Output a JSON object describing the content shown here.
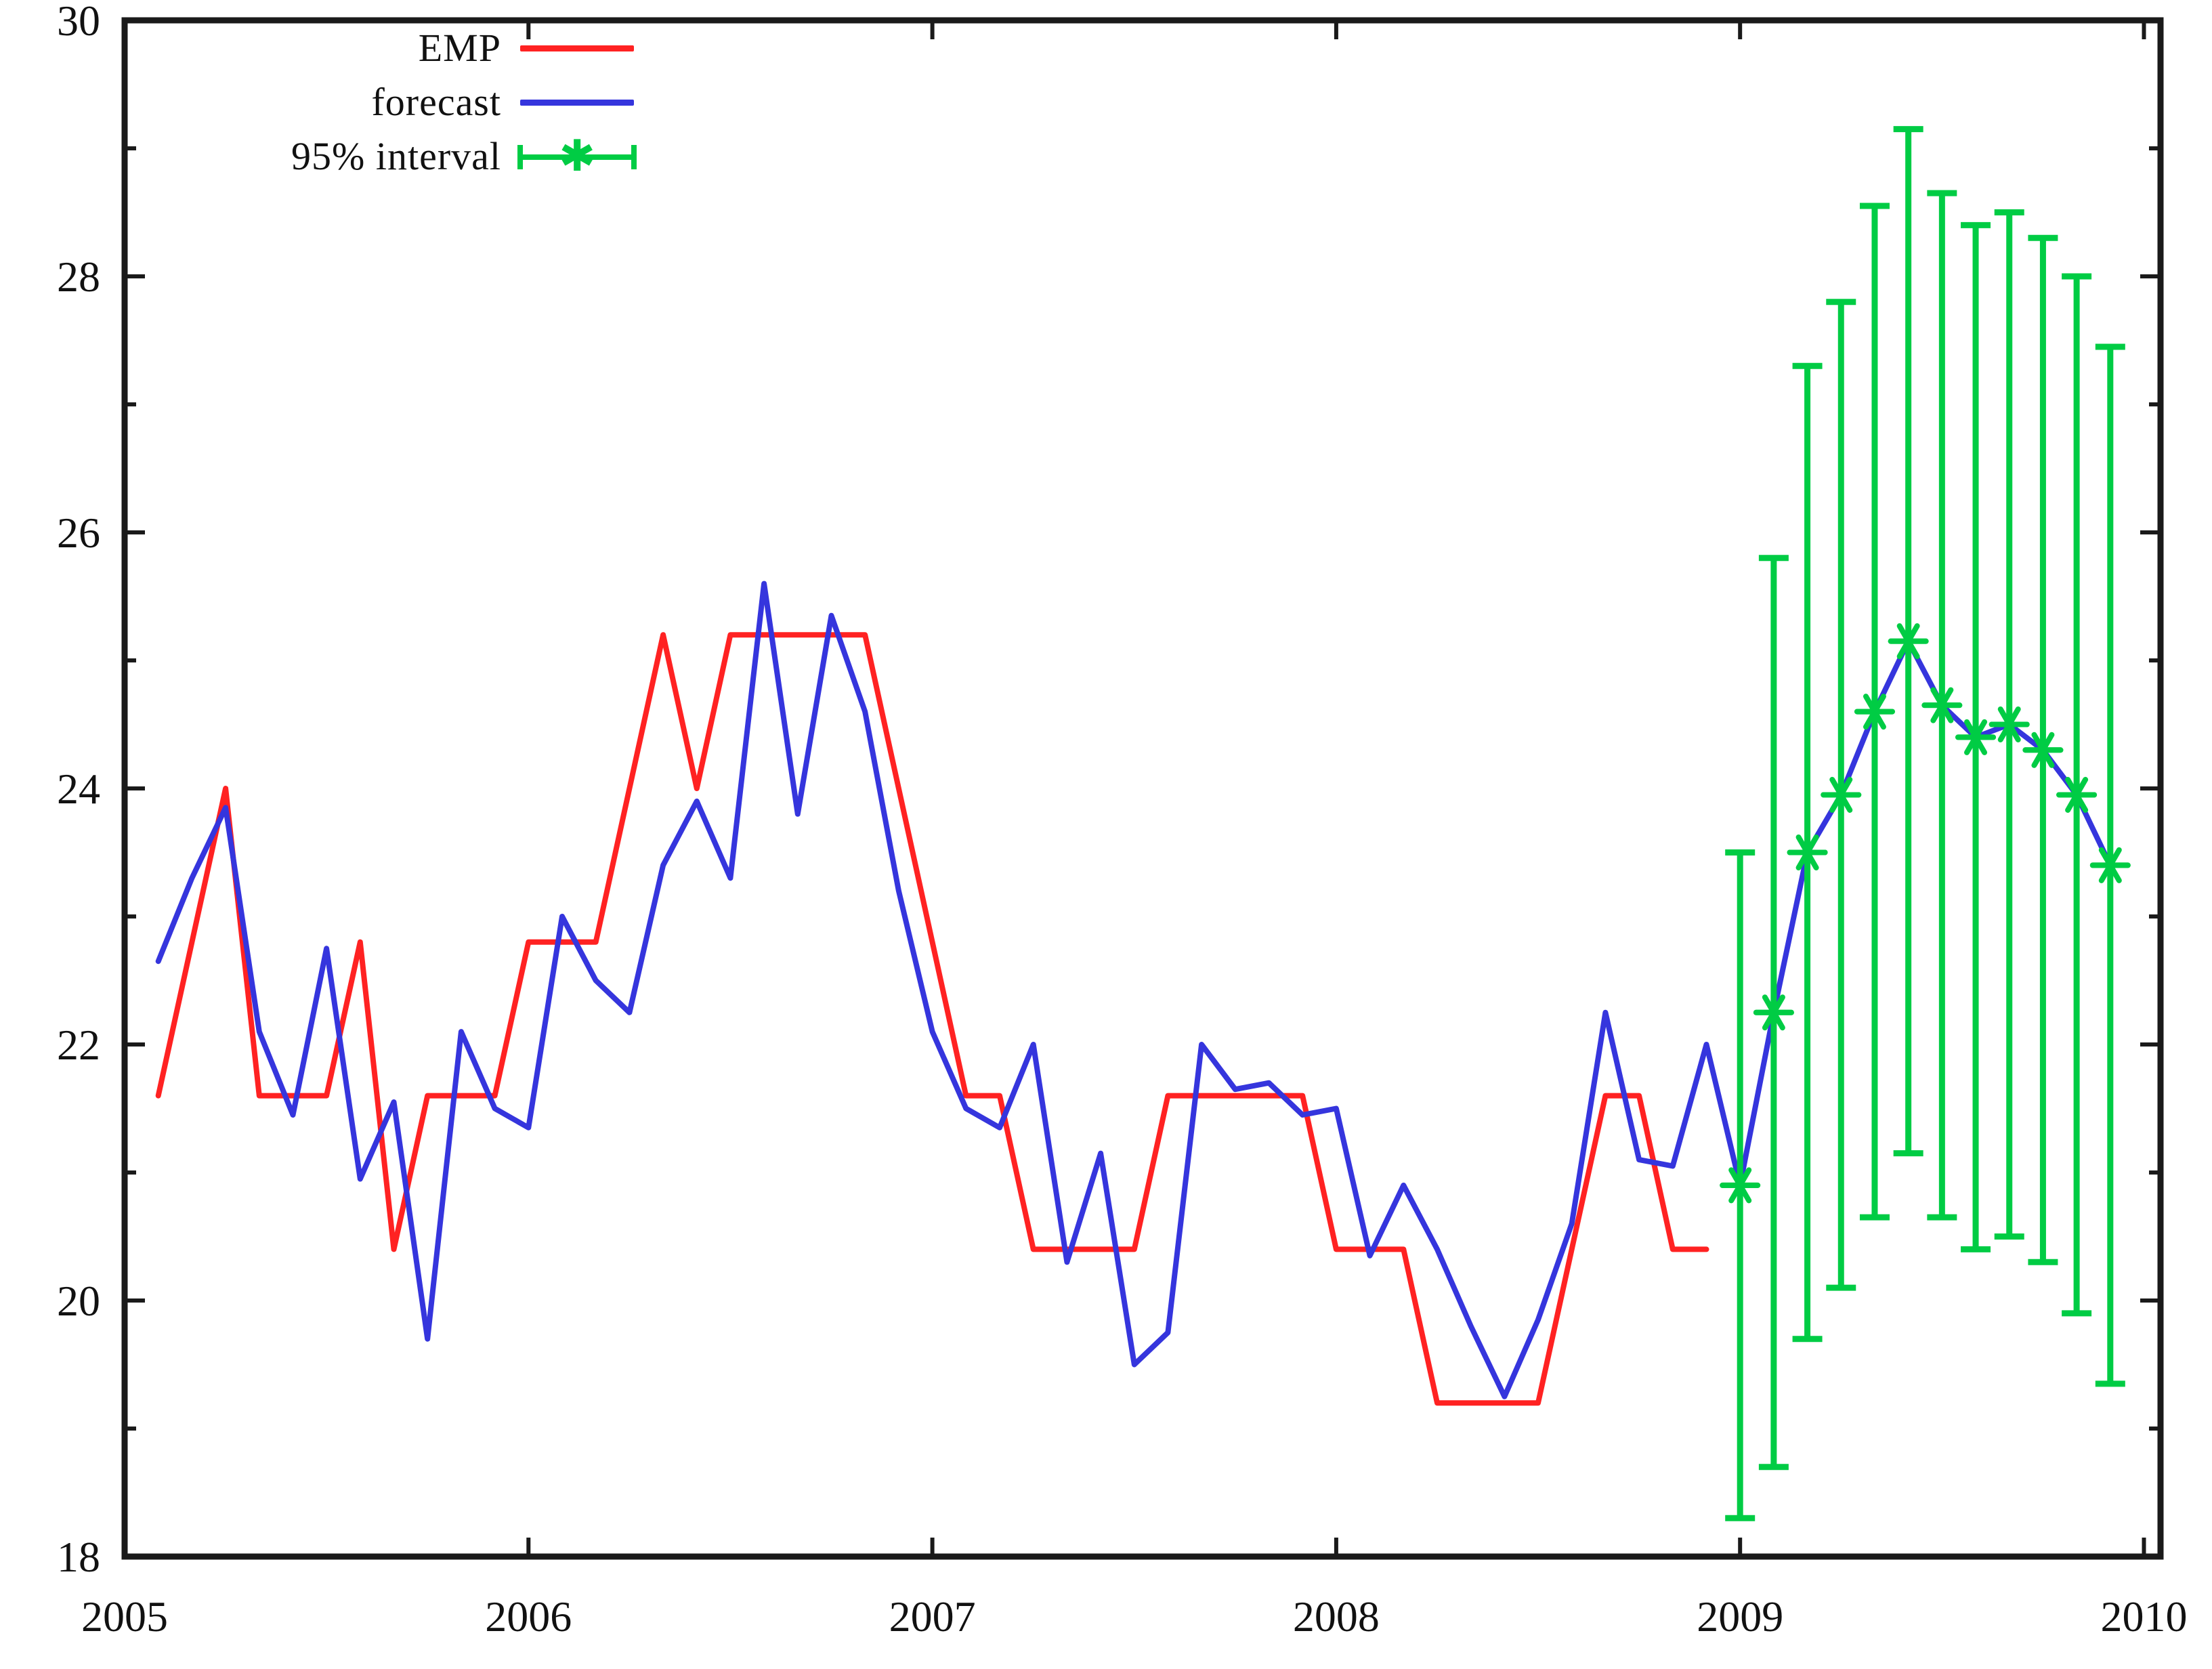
{
  "page": {
    "background": "#ffffff"
  },
  "legend": {
    "items": [
      {
        "label": "EMP",
        "color": "#ff2222",
        "kind": "line"
      },
      {
        "label": "forecast",
        "color": "#3535dd",
        "kind": "line"
      },
      {
        "label": "95% interval",
        "color": "#00cc44",
        "kind": "errorbar"
      }
    ]
  },
  "chart_data": {
    "type": "line",
    "title": "",
    "xlabel": "",
    "ylabel": "",
    "xlim": [
      2005,
      2010.04
    ],
    "ylim": [
      18,
      30
    ],
    "x_tick_labels": [
      "2005",
      "2006",
      "2007",
      "2008",
      "2009",
      "2010"
    ],
    "x_tick_values": [
      2005,
      2006,
      2007,
      2008,
      2009,
      2010
    ],
    "y_tick_labels": [
      "18",
      "20",
      "22",
      "24",
      "26",
      "28",
      "30"
    ],
    "y_tick_values": [
      18,
      20,
      22,
      24,
      26,
      28,
      30
    ],
    "y_minor_step": 1,
    "grid": false,
    "legend_position": "top-left-inside",
    "series": [
      {
        "name": "EMP",
        "color": "#ff2222",
        "start_year": 2005,
        "start_month": 2,
        "values": [
          21.6,
          22.8,
          24.0,
          21.6,
          21.6,
          21.6,
          22.8,
          20.4,
          21.6,
          21.6,
          21.6,
          22.8,
          22.8,
          22.8,
          24.0,
          25.2,
          24.0,
          25.2,
          25.2,
          25.2,
          25.2,
          25.2,
          24.0,
          22.8,
          21.6,
          21.6,
          20.4,
          20.4,
          20.4,
          20.4,
          21.6,
          21.6,
          21.6,
          21.6,
          21.6,
          20.4,
          20.4,
          20.4,
          19.2,
          19.2,
          19.2,
          19.2,
          20.4,
          21.6,
          21.6,
          20.4,
          20.4
        ]
      },
      {
        "name": "forecast",
        "color": "#3535dd",
        "start_year": 2005,
        "start_month": 2,
        "values": [
          22.65,
          23.3,
          23.85,
          22.1,
          21.45,
          22.75,
          20.95,
          21.55,
          19.7,
          22.1,
          21.5,
          21.35,
          23.0,
          22.5,
          22.25,
          23.4,
          23.9,
          23.3,
          25.6,
          23.8,
          25.35,
          24.6,
          23.2,
          22.1,
          21.5,
          21.35,
          22.0,
          20.3,
          21.15,
          19.5,
          19.75,
          22.0,
          21.65,
          21.7,
          21.45,
          21.5,
          20.35,
          20.9,
          20.4,
          19.8,
          19.25,
          19.85,
          20.6,
          22.25,
          21.1,
          21.05,
          22.0,
          20.9,
          22.25,
          23.5,
          23.95,
          24.6,
          25.15,
          24.65,
          24.4,
          24.5,
          24.3,
          23.95,
          23.4
        ]
      }
    ],
    "interval": {
      "name": "95% interval",
      "color": "#00cc44",
      "start_year": 2009,
      "start_month": 1,
      "center": [
        20.9,
        22.25,
        23.5,
        23.95,
        24.6,
        25.15,
        24.65,
        24.4,
        24.5,
        24.3,
        23.95,
        23.4
      ],
      "lo": [
        18.3,
        18.7,
        19.7,
        20.1,
        20.65,
        21.15,
        20.65,
        20.4,
        20.5,
        20.3,
        19.9,
        19.35
      ],
      "hi": [
        23.5,
        25.8,
        27.3,
        27.8,
        28.55,
        29.15,
        28.65,
        28.4,
        28.5,
        28.3,
        28.0,
        27.45
      ]
    }
  }
}
